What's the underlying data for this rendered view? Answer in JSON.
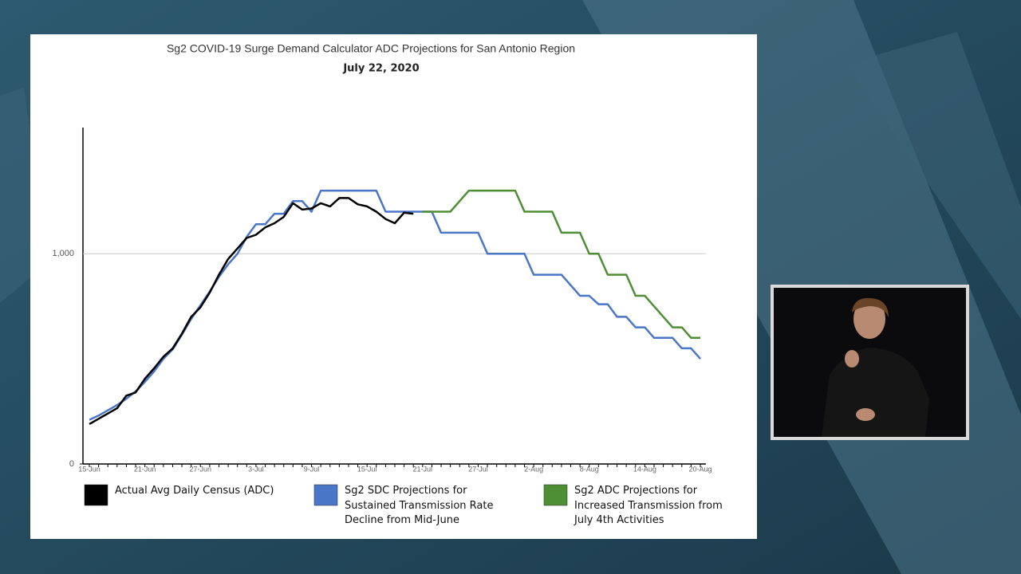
{
  "chart_data": {
    "type": "line",
    "title": "Sg2 COVID-19 Surge Demand Calculator ADC Projections for San Antonio Region",
    "subtitle": "July 22, 2020",
    "categories": [
      "15-Jun",
      null,
      null,
      null,
      null,
      null,
      "21-Jun",
      null,
      null,
      null,
      null,
      null,
      "27-Jun",
      null,
      null,
      null,
      null,
      null,
      "3-Jul",
      null,
      null,
      null,
      null,
      null,
      "9-Jul",
      null,
      null,
      null,
      null,
      null,
      "15-Jul",
      null,
      null,
      null,
      null,
      null,
      "21-Jul",
      null,
      null,
      null,
      null,
      null,
      "27-Jul",
      null,
      null,
      null,
      null,
      null,
      "2-Aug",
      null,
      null,
      null,
      null,
      null,
      "8-Aug",
      null,
      null,
      null,
      null,
      null,
      "14-Aug",
      null,
      null,
      null,
      null,
      null,
      "20-Aug"
    ],
    "series": [
      {
        "name": "Actual Avg Daily Census (ADC)",
        "color": "#000000",
        "values": [
          190,
          215,
          240,
          265,
          325,
          340,
          405,
          455,
          510,
          550,
          620,
          700,
          745,
          815,
          900,
          975,
          1025,
          1075,
          1090,
          1125,
          1145,
          1175,
          1240,
          1210,
          1215,
          1240,
          1225,
          1265,
          1265,
          1235,
          1225,
          1200,
          1165,
          1145,
          1195,
          1190,
          null,
          null,
          null,
          null,
          null,
          null,
          null,
          null,
          null,
          null,
          null,
          null,
          null,
          null,
          null,
          null,
          null,
          null,
          null,
          null,
          null,
          null,
          null,
          null,
          null,
          null,
          null,
          null,
          null,
          null,
          null
        ]
      },
      {
        "name": "Sg2 SDC Projections for Sustained Transmission Rate Decline from Mid-June",
        "color": "#4a76c8",
        "values": [
          210,
          230,
          255,
          280,
          310,
          345,
          390,
          440,
          500,
          545,
          615,
          690,
          755,
          820,
          890,
          950,
          1000,
          1080,
          1140,
          1140,
          1190,
          1190,
          1250,
          1250,
          1200,
          1300,
          1300,
          1300,
          1300,
          1300,
          1300,
          1300,
          1200,
          1200,
          1200,
          1200,
          1200,
          1200,
          1100,
          1100,
          1100,
          1100,
          1100,
          1000,
          1000,
          1000,
          1000,
          1000,
          900,
          900,
          900,
          900,
          850,
          800,
          800,
          760,
          760,
          700,
          700,
          650,
          650,
          600,
          600,
          600,
          550,
          550,
          500
        ]
      },
      {
        "name": "Sg2 ADC Projections for Increased Transmission from July 4th Activities",
        "color": "#4e8f35",
        "values": [
          null,
          null,
          null,
          null,
          null,
          null,
          null,
          null,
          null,
          null,
          null,
          null,
          null,
          null,
          null,
          null,
          null,
          null,
          null,
          null,
          null,
          null,
          null,
          null,
          null,
          null,
          null,
          null,
          null,
          null,
          null,
          null,
          null,
          null,
          null,
          null,
          1200,
          1200,
          1200,
          1200,
          1250,
          1300,
          1300,
          1300,
          1300,
          1300,
          1300,
          1200,
          1200,
          1200,
          1200,
          1100,
          1100,
          1100,
          1000,
          1000,
          900,
          900,
          900,
          800,
          800,
          750,
          700,
          650,
          650,
          600,
          600
        ]
      }
    ],
    "ylim": [
      0,
      1600
    ],
    "yticks": [
      0,
      {
        "value": 1000,
        "label": "1,000"
      }
    ],
    "grid": true,
    "legend": "bottom"
  }
}
